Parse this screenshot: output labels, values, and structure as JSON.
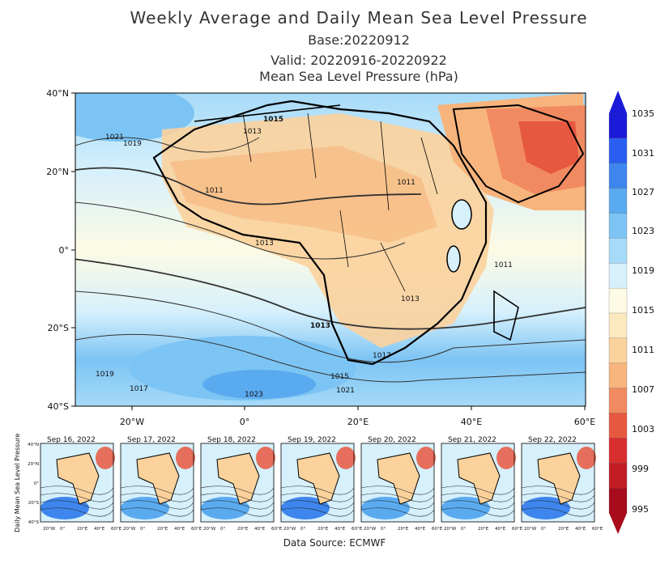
{
  "header": {
    "title": "Weekly Average and Daily Mean Sea Level Pressure",
    "base": "Base:20220912",
    "valid": "Valid: 20220916-20220922",
    "variable": "Mean Sea Level Pressure (hPa)"
  },
  "main_map": {
    "lat_labels": [
      "40°N",
      "20°N",
      "0°",
      "20°S",
      "40°S"
    ],
    "lon_labels": [
      "20°W",
      "0°",
      "20°E",
      "40°E",
      "60°E"
    ],
    "contour_labels": [
      "1021",
      "1019",
      "1013",
      "1015",
      "1011",
      "1011",
      "1013",
      "1011",
      "1013",
      "1013",
      "1017",
      "1015",
      "1021",
      "1019",
      "1017",
      "1023"
    ]
  },
  "colorbar": {
    "labels": [
      "1035",
      "1031",
      "1027",
      "1023",
      "1019",
      "1015",
      "1011",
      "1007",
      "1003",
      "999",
      "995"
    ],
    "colors": [
      "#1a1ad8",
      "#2a5ef0",
      "#3e86ee",
      "#5aaaf0",
      "#7cc4f4",
      "#a6daf8",
      "#d6f0fc",
      "#fdfbe4",
      "#fde9c0",
      "#fbd29c",
      "#f7b47c",
      "#f18a60",
      "#e75840",
      "#d92e2e",
      "#c21c24",
      "#a80c1c"
    ]
  },
  "daily": {
    "ylabel": "Daily Mean Sea Level Pressure",
    "panels": [
      "Sep 16, 2022",
      "Sep 17, 2022",
      "Sep 18, 2022",
      "Sep 19, 2022",
      "Sep 20, 2022",
      "Sep 21, 2022",
      "Sep 22, 2022"
    ],
    "lat_labels": [
      "40°N",
      "20°N",
      "0°",
      "20°S",
      "40°S"
    ],
    "lon_labels": [
      "20°W",
      "0°",
      "20°E",
      "40°E",
      "60°E"
    ]
  },
  "source": "Data Source: ECMWF"
}
